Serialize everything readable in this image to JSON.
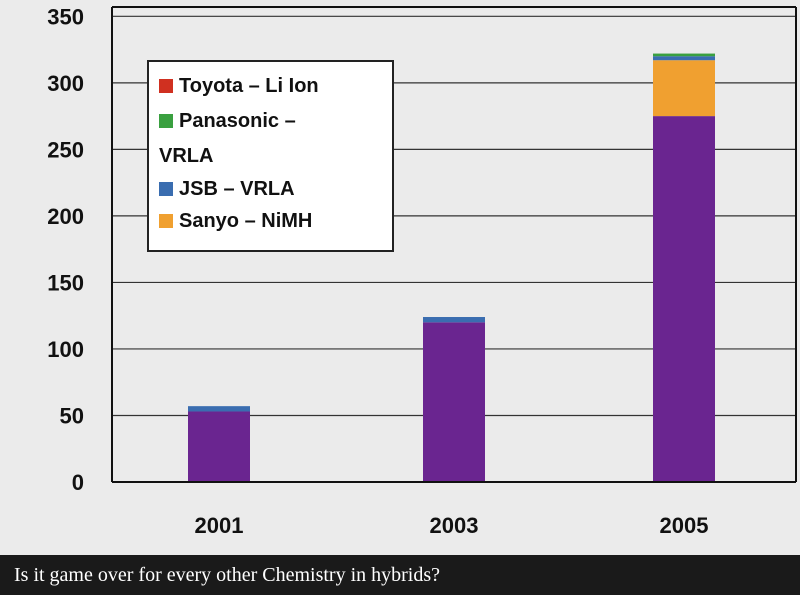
{
  "chart_data": {
    "type": "bar",
    "stacked": true,
    "categories": [
      "2001",
      "2003",
      "2005"
    ],
    "ylim": [
      0,
      350
    ],
    "yticks": [
      0,
      50,
      100,
      150,
      200,
      250,
      300,
      350
    ],
    "grid": "horizontal",
    "legend_position": "top-left",
    "series": [
      {
        "values": [
          53,
          120,
          275
        ],
        "color": "#6a2590"
      },
      {
        "name": "Sanyo – NiMH",
        "values": [
          0,
          0,
          42
        ],
        "color": "#f0a030"
      },
      {
        "name": "JSB – VRLA",
        "values": [
          4,
          4,
          3
        ],
        "color": "#3a6db0"
      },
      {
        "name": "Panasonic – VRLA",
        "values": [
          0,
          0,
          2
        ],
        "color": "#3aa040"
      },
      {
        "name": "Toyota – Li Ion",
        "values": [
          0,
          0,
          0
        ],
        "color": "#d03020"
      }
    ]
  },
  "legend": {
    "items": [
      {
        "label": "Toyota – Li Ion",
        "color": "#d03020"
      },
      {
        "label": "Panasonic –",
        "label_cont": "VRLA",
        "color": "#3aa040"
      },
      {
        "label": "JSB – VRLA",
        "color": "#3a6db0"
      },
      {
        "label": "Sanyo – NiMH",
        "color": "#f0a030"
      }
    ]
  },
  "caption": "Is it game over for every other Chemistry in hybrids?"
}
